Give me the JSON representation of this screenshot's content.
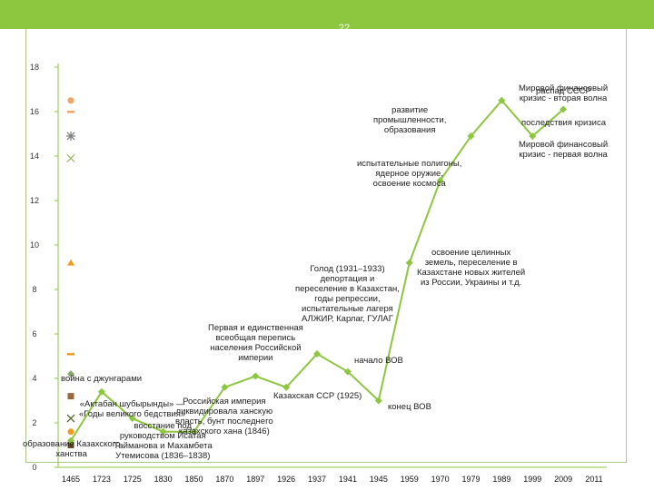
{
  "slide": {
    "number": "22"
  },
  "chart_data": {
    "type": "line",
    "title": "",
    "xlabel": "",
    "ylabel": "",
    "ylim": [
      0,
      18
    ],
    "y_ticks": [
      0,
      2,
      4,
      6,
      8,
      10,
      12,
      14,
      16,
      18
    ],
    "grid": false,
    "legend": "none",
    "categories": [
      "1465",
      "1723",
      "1725",
      "1830",
      "1850",
      "1870",
      "1897",
      "1926",
      "1937",
      "1941",
      "1945",
      "1959",
      "1970",
      "1979",
      "1989",
      "1999",
      "2009",
      "2011"
    ],
    "series": [
      {
        "name": "",
        "color": "#8dc63f",
        "marker": "diamond",
        "values": [
          1.2,
          3.4,
          2.2,
          1.6,
          1.6,
          3.6,
          4.1,
          3.6,
          5.1,
          4.3,
          3.0,
          9.2,
          12.9,
          14.9,
          16.5,
          14.9,
          16.1,
          null
        ]
      }
    ],
    "left_markers": [
      {
        "shape": "circle",
        "color": "#f2a464",
        "value": 16.5
      },
      {
        "shape": "dash",
        "color": "#f2a464",
        "value": 16.0
      },
      {
        "shape": "star",
        "color": "#7f7f7f",
        "value": 14.9
      },
      {
        "shape": "x",
        "color": "#9fbc6a",
        "value": 13.9
      },
      {
        "shape": "triangle",
        "color": "#f29c1f",
        "value": 9.2
      },
      {
        "shape": "dash",
        "color": "#f29c1f",
        "value": 5.1
      },
      {
        "shape": "diamond",
        "color": "#8aa86a",
        "value": 4.2
      },
      {
        "shape": "square",
        "color": "#9b6a3c",
        "value": 3.2
      },
      {
        "shape": "x",
        "color": "#4c6b2a",
        "value": 2.2
      },
      {
        "shape": "circle",
        "color": "#f29c1f",
        "value": 1.6
      },
      {
        "shape": "square",
        "color": "#6b4d2a",
        "value": 1.0
      }
    ],
    "annotations": [
      {
        "text": "образование Казахского\nханства",
        "x_index": 0,
        "y": 0.8
      },
      {
        "text": "война с джунгарами",
        "x_index": 1,
        "y": 4.0
      },
      {
        "text": "«Актабан шубырынды» —\n«Годы великого бедствия»",
        "x_index": 2,
        "y": 2.6
      },
      {
        "text": "восстание под\nруководством Исатая\nТайманова и Махамбета\nУтемисова (1836–1838)",
        "x_index": 3,
        "y": 1.2
      },
      {
        "text": "Российская империя\nликвидировала ханскую\nвласть, бунт последнего\nказахского хана (1846)",
        "x_index": 5,
        "y": 2.3
      },
      {
        "text": "Первая и единственная\nвсеобщая перепись\nнаселения Российской\nимперии",
        "x_index": 6,
        "y": 5.6
      },
      {
        "text": "Казахская ССР (1925)",
        "x_index": 8,
        "y": 3.2
      },
      {
        "text": "Голод (1931–1933)\nдепортация и\nпереселение в Казахстан,\nгоды репрессии,\nиспытательные лагеря\nАЛЖИР, Карлаг, ГУЛАГ",
        "x_index": 9,
        "y": 7.8
      },
      {
        "text": "начало ВОВ",
        "x_index": 10,
        "y": 4.8
      },
      {
        "text": "конец ВОВ",
        "x_index": 11,
        "y": 2.7
      },
      {
        "text": "освоение целинных\nземель, переселение в\nКазахстане новых жителей\nиз России, Украины и т.д.",
        "x_index": 13,
        "y": 9.0
      },
      {
        "text": "испытательные полигоны,\nядерное оружие,\nосвоение космоса",
        "x_index": 11,
        "y": 13.2
      },
      {
        "text": "развитие\nпромышленности,\nобразования",
        "x_index": 11,
        "y": 15.6
      },
      {
        "text": "последствия кризиса",
        "x_index": 16,
        "y": 15.5
      },
      {
        "text": "Мировой финансовый\nкризис - первая волна",
        "x_index": 16,
        "y": 14.3
      },
      {
        "text": "Мировой финансовый\nкризис - вторая волна",
        "x_index": 16,
        "y": 16.8
      },
      {
        "text": "распад СССР",
        "x_index": 16,
        "y": 16.9
      }
    ]
  }
}
